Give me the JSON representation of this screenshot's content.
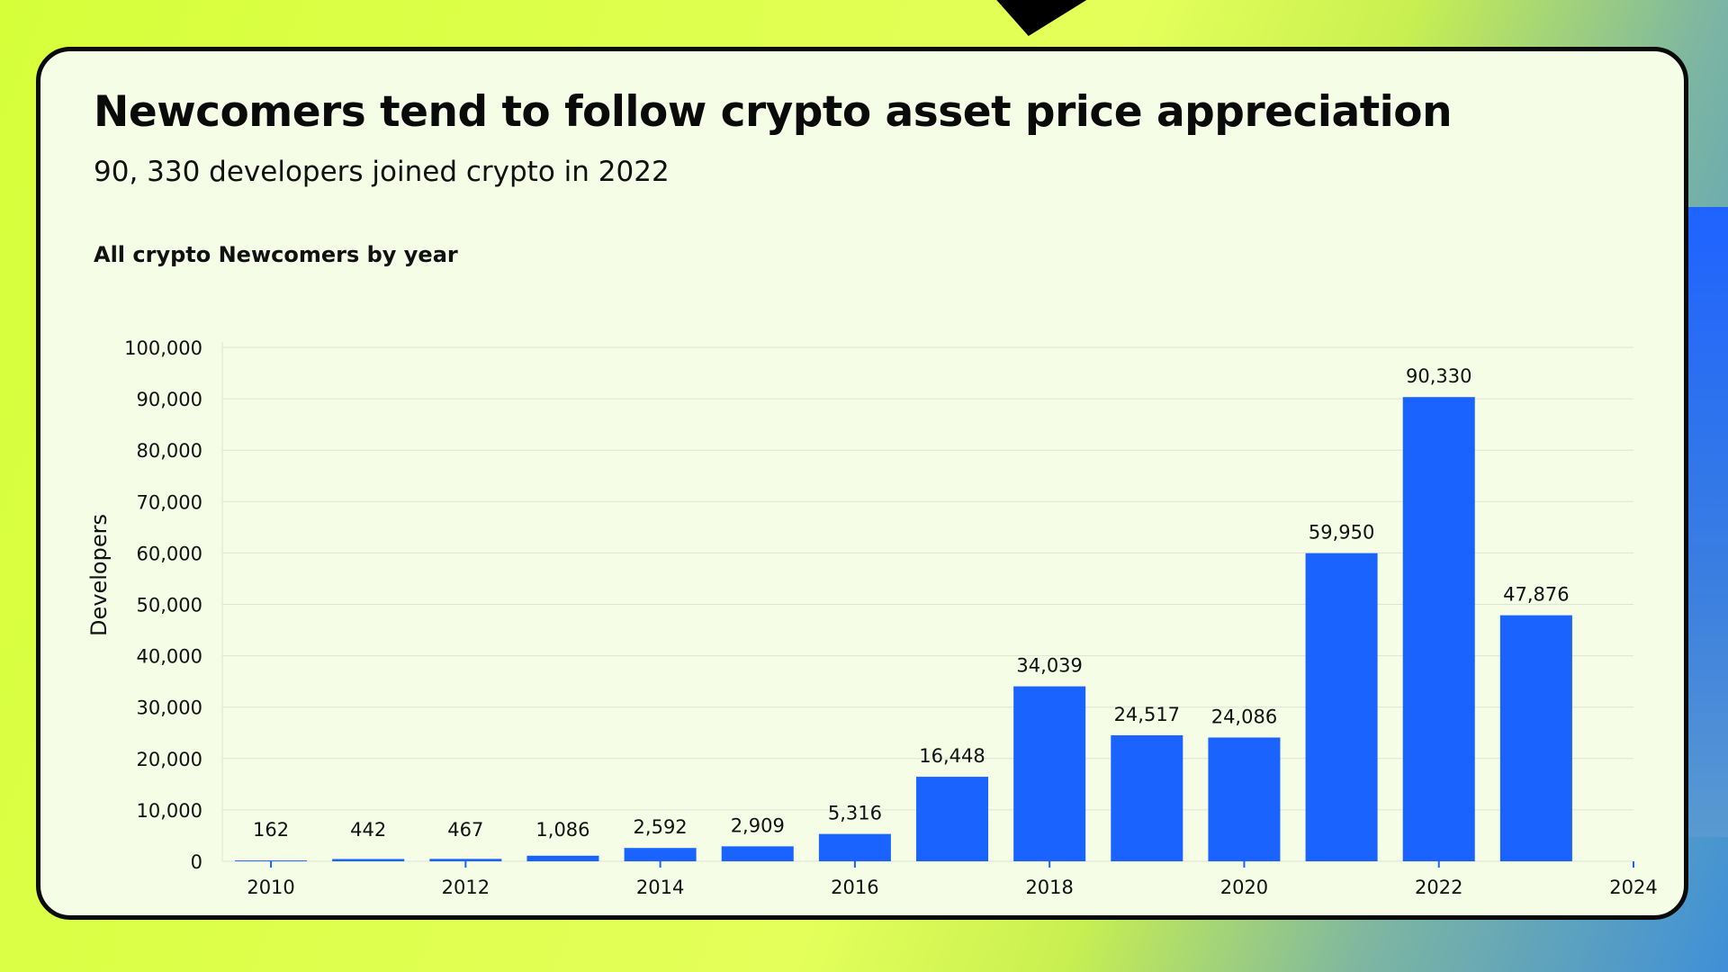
{
  "header": {
    "title": "Newcomers tend to follow crypto asset price appreciation",
    "subtitle": "90, 330 developers joined crypto in 2022",
    "chart_heading": "All crypto Newcomers by year"
  },
  "colors": {
    "bar": "#1a63ff",
    "card_background": "#f5fde6",
    "gridline": "#dfe3d6"
  },
  "chart_data": {
    "type": "bar",
    "title": "All crypto Newcomers by year",
    "xlabel": "",
    "ylabel": "Developers",
    "categories": [
      2010,
      2011,
      2012,
      2013,
      2014,
      2015,
      2016,
      2017,
      2018,
      2019,
      2020,
      2021,
      2022,
      2023
    ],
    "values": [
      162,
      442,
      467,
      1086,
      2592,
      2909,
      5316,
      16448,
      34039,
      24517,
      24086,
      59950,
      90330,
      47876
    ],
    "data_labels": [
      "162",
      "442",
      "467",
      "1,086",
      "2,592",
      "2,909",
      "5,316",
      "16,448",
      "34,039",
      "24,517",
      "24,086",
      "59,950",
      "90,330",
      "47,876"
    ],
    "x_ticks": [
      2010,
      2012,
      2014,
      2016,
      2018,
      2020,
      2022,
      2024
    ],
    "x_tick_labels": [
      "2010",
      "2012",
      "2014",
      "2016",
      "2018",
      "2020",
      "2022",
      "2024"
    ],
    "xlim": [
      2009.5,
      2024
    ],
    "ylim": [
      0,
      100000
    ],
    "y_ticks": [
      0,
      10000,
      20000,
      30000,
      40000,
      50000,
      60000,
      70000,
      80000,
      90000,
      100000
    ],
    "y_tick_labels": [
      "0",
      "10,000",
      "20,000",
      "30,000",
      "40,000",
      "50,000",
      "60,000",
      "70,000",
      "80,000",
      "90,000",
      "100,000"
    ],
    "grid": true,
    "legend": "none"
  }
}
